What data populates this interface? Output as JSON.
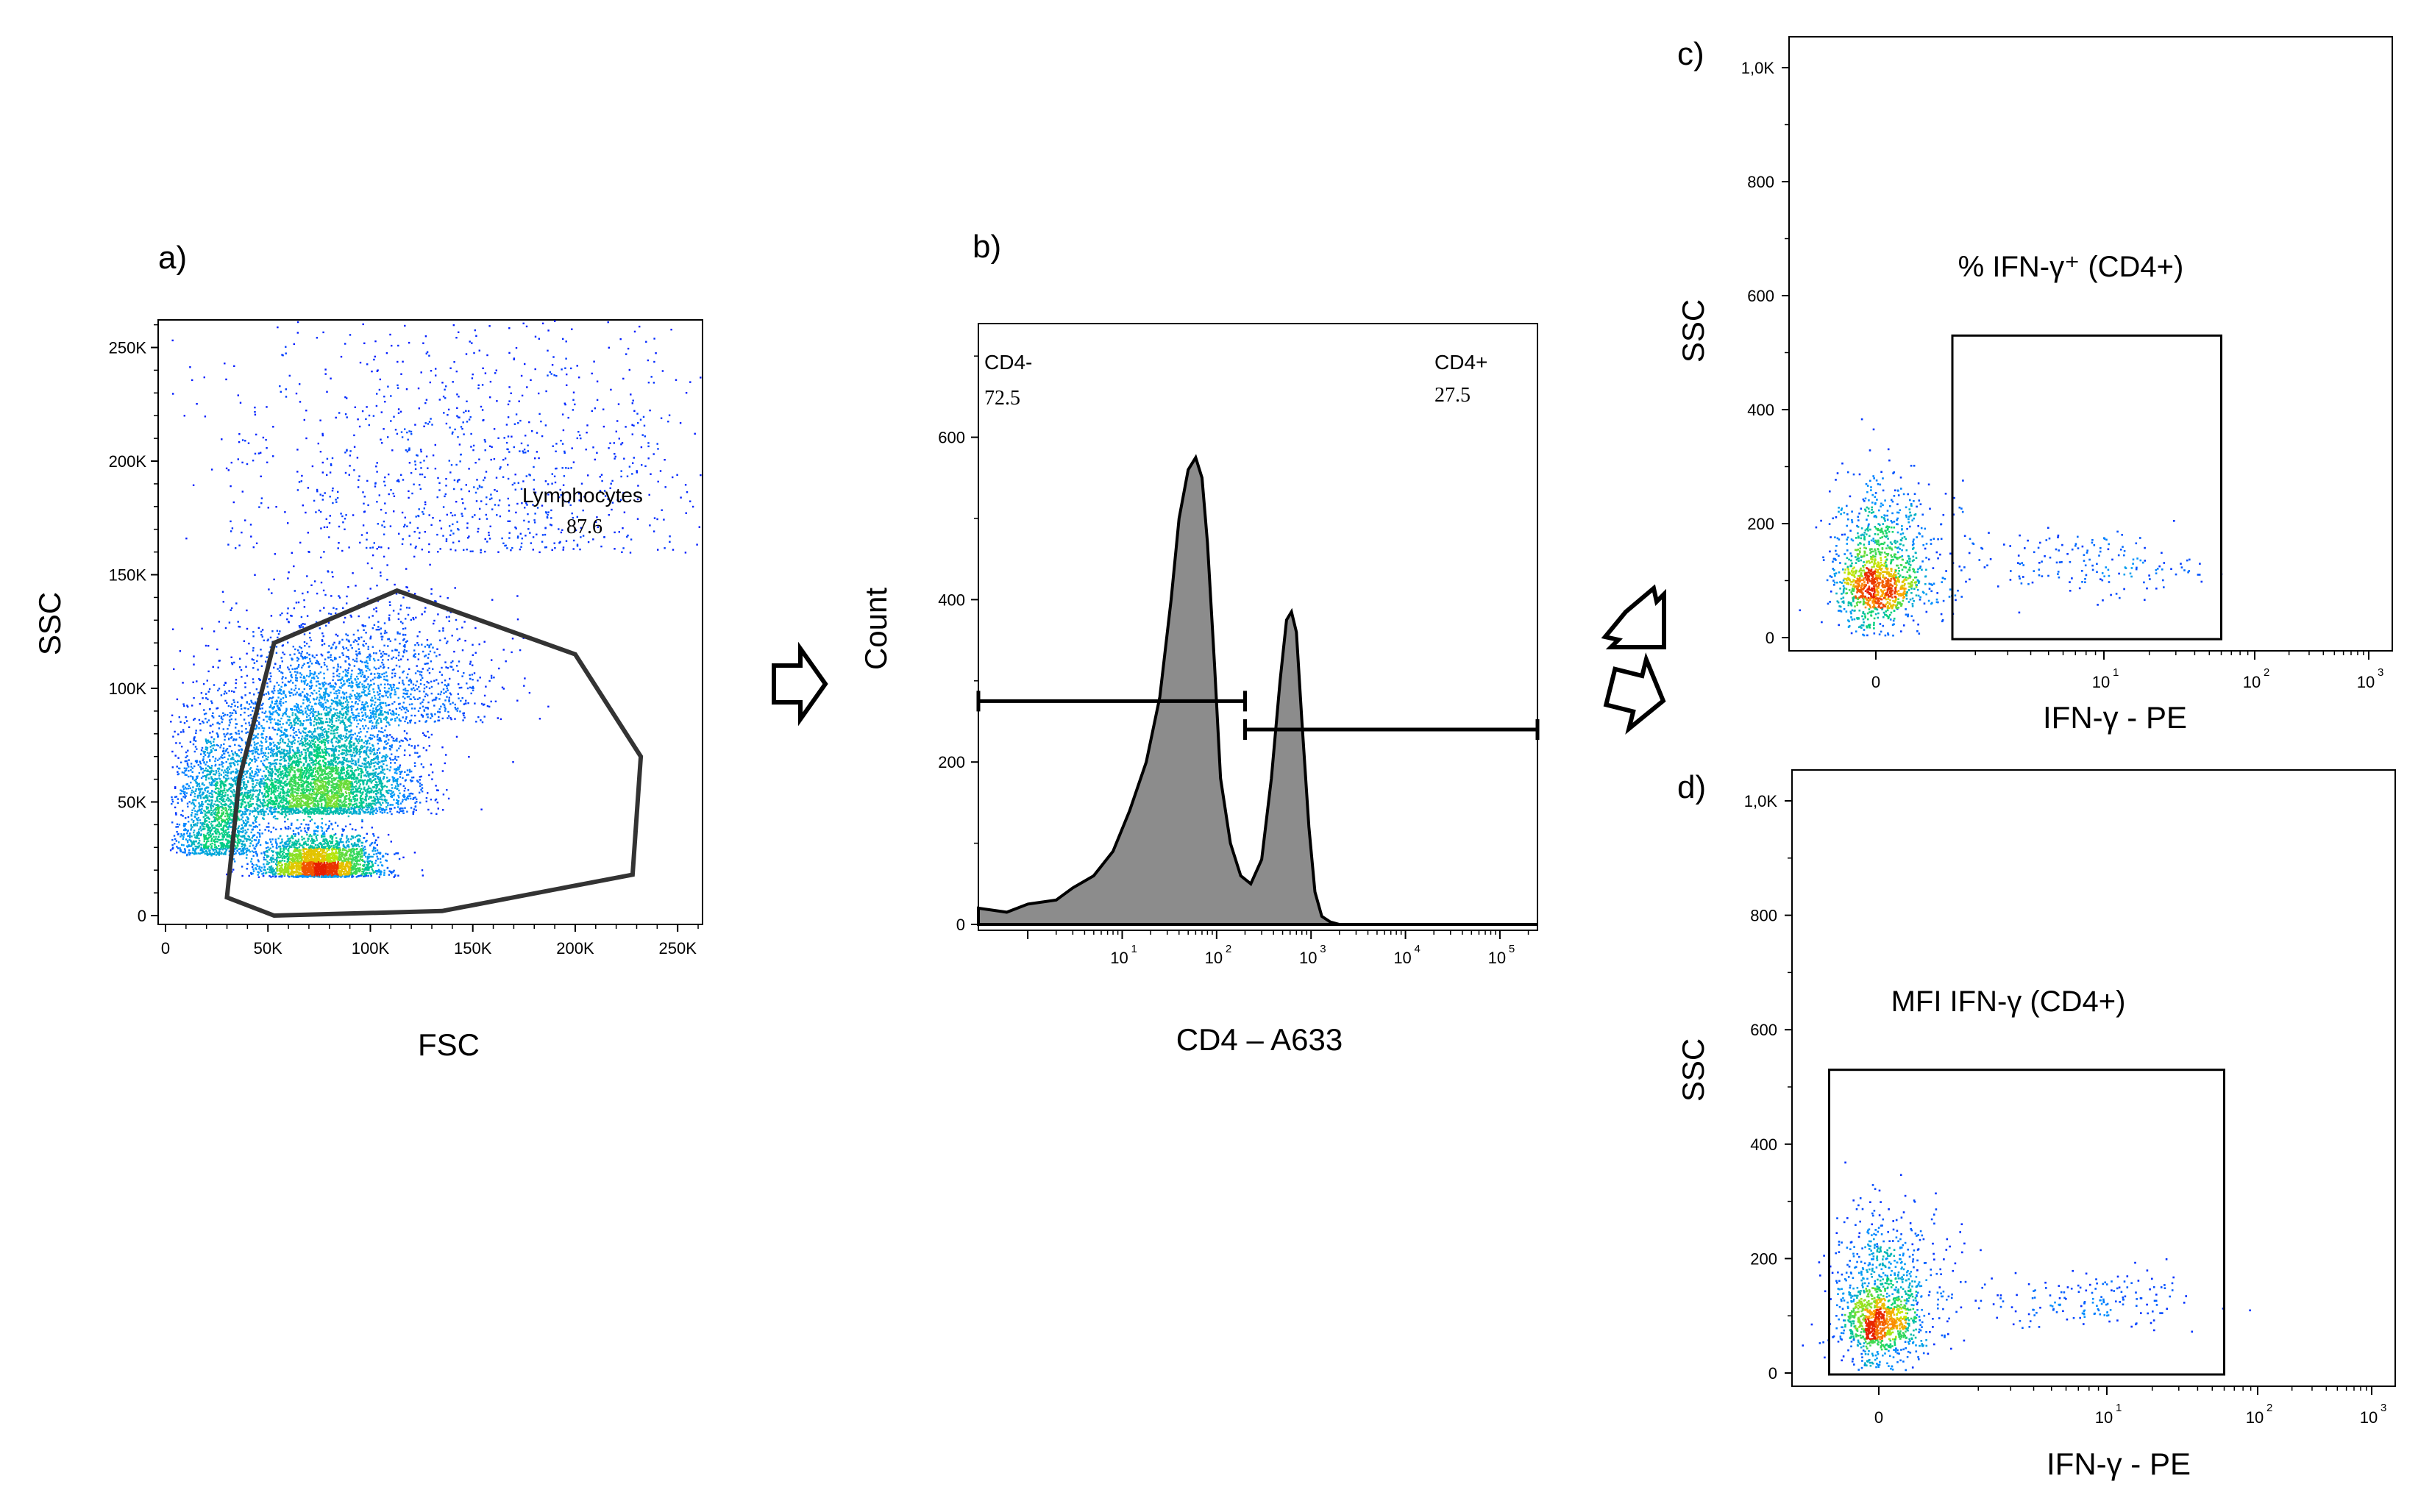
{
  "figure": {
    "panels": {
      "a": {
        "letter": "a)",
        "xlabel": "FSC",
        "ylabel": "SSC",
        "gate_name": "Lymphocytes",
        "gate_value": "87.6"
      },
      "b": {
        "letter": "b)",
        "xlabel": "CD4 – A633",
        "ylabel": "Count",
        "left_gate_name": "CD4-",
        "left_gate_value": "72.5",
        "right_gate_name": "CD4+",
        "right_gate_value": "27.5"
      },
      "c": {
        "letter": "c)",
        "xlabel": "IFN-γ - PE",
        "ylabel": "SSC",
        "gate_label": "% IFN-γ⁺ (CD4+)"
      },
      "d": {
        "letter": "d)",
        "xlabel": "IFN-γ - PE",
        "ylabel": "SSC",
        "gate_label": "MFI IFN-γ (CD4+)"
      }
    },
    "colors": {
      "low": "#0000ff",
      "mid": "#00d080",
      "high": "#ffe000",
      "peak": "#e02000",
      "hist_fill": "#8c8c8c"
    }
  },
  "chart_data": [
    {
      "panel": "a",
      "type": "scatter",
      "xlabel": "FSC",
      "ylabel": "SSC",
      "xlim": [
        0,
        262144
      ],
      "ylim": [
        0,
        262144
      ],
      "xticks": [
        "0",
        "50K",
        "100K",
        "150K",
        "200K",
        "250K"
      ],
      "xtick_values": [
        0,
        50000,
        100000,
        150000,
        200000,
        250000
      ],
      "yticks": [
        "0",
        "50K",
        "100K",
        "150K",
        "200K",
        "250K"
      ],
      "ytick_values": [
        0,
        50000,
        100000,
        150000,
        200000,
        250000
      ],
      "gate": {
        "name": "Lymphocytes",
        "value": 87.6,
        "polygon": [
          [
            30000,
            8000
          ],
          [
            36000,
            60000
          ],
          [
            53000,
            120000
          ],
          [
            113000,
            143000
          ],
          [
            200000,
            115000
          ],
          [
            232000,
            70000
          ],
          [
            228000,
            18000
          ],
          [
            135000,
            2000
          ],
          [
            53000,
            0
          ]
        ]
      },
      "density_clusters": [
        {
          "x": 75000,
          "y": 20000,
          "sx": 14000,
          "sy": 9000,
          "n": 2400
        },
        {
          "x": 75000,
          "y": 45000,
          "sx": 22000,
          "sy": 28000,
          "n": 4200
        },
        {
          "x": 25000,
          "y": 35000,
          "sx": 11000,
          "sy": 28000,
          "n": 1600
        },
        {
          "x": 95000,
          "y": 85000,
          "sx": 32000,
          "sy": 30000,
          "n": 1400
        },
        {
          "x": 150000,
          "y": 160000,
          "sx": 65000,
          "sy": 65000,
          "n": 1100
        }
      ]
    },
    {
      "panel": "b",
      "type": "area",
      "xlabel": "CD4 – A633",
      "ylabel": "Count",
      "xscale": "log",
      "xlim": [
        0.3,
        250000
      ],
      "ylim": [
        0,
        740
      ],
      "xticks": [
        "10",
        "10",
        "10",
        "10",
        "10"
      ],
      "xtick_exponents": [
        "1",
        "2",
        "3",
        "4",
        "5"
      ],
      "xtick_values": [
        10,
        100,
        1000,
        10000,
        100000
      ],
      "yticks": [
        "0",
        "200",
        "400",
        "600"
      ],
      "ytick_values": [
        0,
        200,
        400,
        600
      ],
      "x": [
        0.3,
        0.6,
        1,
        2,
        3,
        5,
        8,
        12,
        18,
        25,
        33,
        40,
        50,
        60,
        70,
        80,
        95,
        110,
        140,
        180,
        230,
        300,
        380,
        470,
        550,
        620,
        700,
        800,
        950,
        1100,
        1300,
        1600,
        2000,
        3000,
        10000,
        250000
      ],
      "y": [
        20,
        15,
        25,
        30,
        45,
        60,
        90,
        140,
        200,
        280,
        400,
        500,
        560,
        575,
        550,
        470,
        320,
        180,
        100,
        60,
        50,
        80,
        180,
        300,
        375,
        385,
        360,
        250,
        120,
        40,
        10,
        3,
        0,
        0,
        0,
        0
      ],
      "gates": [
        {
          "name": "CD4-",
          "value": 72.5,
          "range": [
            0.3,
            200
          ],
          "y": 275
        },
        {
          "name": "CD4+",
          "value": 27.5,
          "range": [
            200,
            250000
          ],
          "y": 240
        }
      ]
    },
    {
      "panel": "c",
      "type": "scatter",
      "xlabel": "IFN-γ - PE",
      "ylabel": "SSC",
      "xscale": "biexponential",
      "xlim": [
        -2,
        1000
      ],
      "ylim": [
        0,
        1000
      ],
      "xticks": [
        "0",
        "10",
        "10",
        "10"
      ],
      "xtick_exponents": [
        "",
        "1",
        "2",
        "3"
      ],
      "xtick_values": [
        0,
        10,
        100,
        1000
      ],
      "yticks": [
        "0",
        "200",
        "400",
        "600",
        "800",
        "1,0K"
      ],
      "ytick_values": [
        0,
        200,
        400,
        600,
        800,
        1000
      ],
      "gate": {
        "label": "% IFN-γ⁺ (CD4+)",
        "x_range": [
          1.5,
          60
        ],
        "y_range": [
          0,
          530
        ]
      },
      "density_clusters": [
        {
          "x": 0,
          "y": 90,
          "sx": 0.55,
          "sy": 40,
          "n": 900
        },
        {
          "x": 0,
          "y": 170,
          "sx": 0.7,
          "sy": 80,
          "n": 500
        },
        {
          "x": 8,
          "y": 130,
          "sx": 0.35,
          "sy": 28,
          "n": 170
        }
      ]
    },
    {
      "panel": "d",
      "type": "scatter",
      "xlabel": "IFN-γ - PE",
      "ylabel": "SSC",
      "xscale": "biexponential",
      "xlim": [
        -2,
        1000
      ],
      "ylim": [
        0,
        1000
      ],
      "xticks": [
        "0",
        "10",
        "10",
        "10"
      ],
      "xtick_exponents": [
        "",
        "1",
        "2",
        "3"
      ],
      "xtick_values": [
        0,
        10,
        100,
        1000
      ],
      "yticks": [
        "0",
        "200",
        "400",
        "600",
        "800",
        "1,0K"
      ],
      "ytick_values": [
        0,
        200,
        400,
        600,
        800,
        1000
      ],
      "gate": {
        "label": "MFI IFN-γ (CD4+)",
        "x_range": [
          -1.5,
          60
        ],
        "y_range": [
          0,
          530
        ]
      },
      "density_clusters": [
        {
          "x": 0,
          "y": 90,
          "sx": 0.55,
          "sy": 40,
          "n": 900
        },
        {
          "x": 0,
          "y": 170,
          "sx": 0.7,
          "sy": 80,
          "n": 500
        },
        {
          "x": 8,
          "y": 130,
          "sx": 0.35,
          "sy": 28,
          "n": 170
        }
      ]
    }
  ]
}
